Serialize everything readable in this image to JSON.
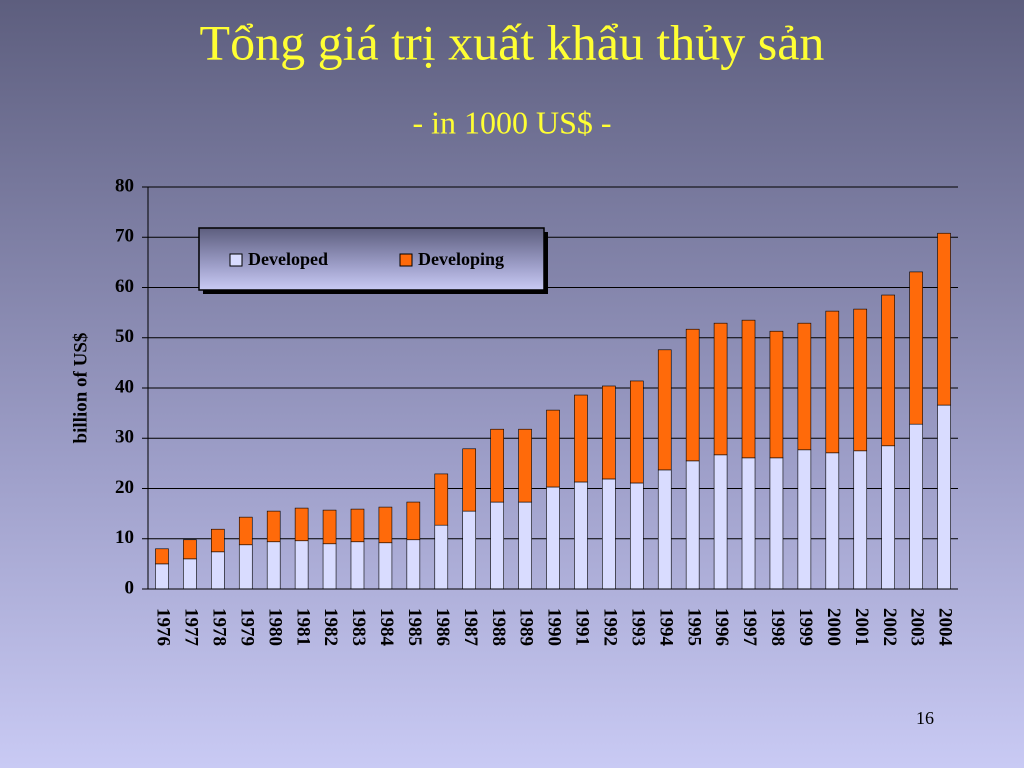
{
  "chart_data": {
    "type": "stacked_bar",
    "title": "Tổng giá trị xuất khẩu thủy sản",
    "subtitle": "- in 1000 US$ -",
    "y_label": "billion of US$",
    "categories": [
      "1976",
      "1977",
      "1978",
      "1979",
      "1980",
      "1981",
      "1982",
      "1983",
      "1984",
      "1985",
      "1986",
      "1987",
      "1988",
      "1989",
      "1990",
      "1991",
      "1992",
      "1993",
      "1994",
      "1995",
      "1996",
      "1997",
      "1998",
      "1999",
      "2000",
      "2001",
      "2002",
      "2003",
      "2004"
    ],
    "series": [
      {
        "name": "Developed",
        "color": "#d9dcff",
        "values": [
          5.0,
          6.0,
          7.4,
          8.8,
          9.4,
          9.6,
          9.0,
          9.4,
          9.2,
          9.8,
          12.7,
          15.5,
          17.3,
          17.3,
          20.3,
          21.3,
          21.9,
          21.1,
          23.7,
          25.5,
          26.7,
          26.1,
          26.1,
          27.7,
          27.1,
          27.5,
          28.5,
          32.8,
          36.6
        ]
      },
      {
        "name": "Developing",
        "color": "#ff6a0a",
        "values": [
          3.0,
          3.8,
          4.5,
          5.5,
          6.1,
          6.5,
          6.7,
          6.5,
          7.1,
          7.5,
          10.2,
          12.4,
          14.5,
          14.5,
          15.3,
          17.3,
          18.5,
          20.3,
          23.9,
          26.2,
          26.2,
          27.4,
          25.2,
          25.2,
          28.2,
          28.2,
          30.0,
          30.3,
          34.2
        ]
      }
    ],
    "ylim": [
      0,
      80
    ],
    "yticks": [
      0,
      10,
      20,
      30,
      40,
      50,
      60,
      70,
      80
    ],
    "grid": true
  },
  "slide_number": "16"
}
